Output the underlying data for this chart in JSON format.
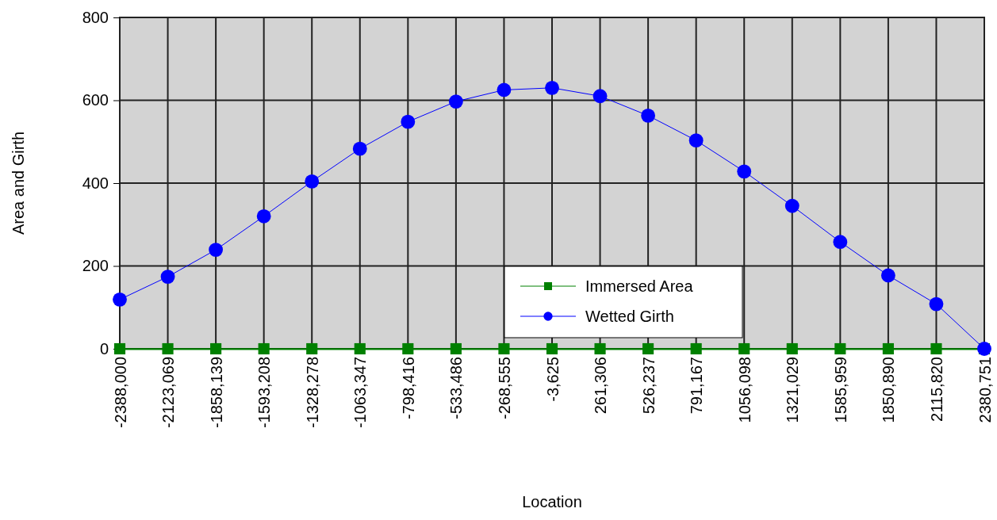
{
  "chart_data": {
    "type": "line",
    "xlabel": "Location",
    "ylabel": "Area and Girth",
    "categories": [
      "-2388,000",
      "-2123,069",
      "-1858,139",
      "-1593,208",
      "-1328,278",
      "-1063,347",
      "-798,416",
      "-533,486",
      "-268,555",
      "-3,625",
      "261,306",
      "526,237",
      "791,167",
      "1056,098",
      "1321,029",
      "1585,959",
      "1850,890",
      "2115,820",
      "2380,751"
    ],
    "series": [
      {
        "name": "Immersed Area",
        "color": "#008000",
        "marker": "square",
        "values": [
          0,
          0,
          0,
          0,
          0,
          0,
          0,
          0,
          0,
          0,
          0,
          0,
          0,
          0,
          0,
          0,
          0,
          0,
          0
        ]
      },
      {
        "name": "Wetted Girth",
        "color": "#0000ff",
        "marker": "circle",
        "values": [
          119,
          174,
          239,
          320,
          404,
          483,
          548,
          597,
          625,
          630,
          610,
          563,
          503,
          428,
          345,
          258,
          177,
          108,
          0
        ]
      }
    ],
    "ylim": [
      0,
      800
    ],
    "yticks": [
      0,
      200,
      400,
      600,
      800
    ],
    "grid": true,
    "legend": "bottom"
  }
}
